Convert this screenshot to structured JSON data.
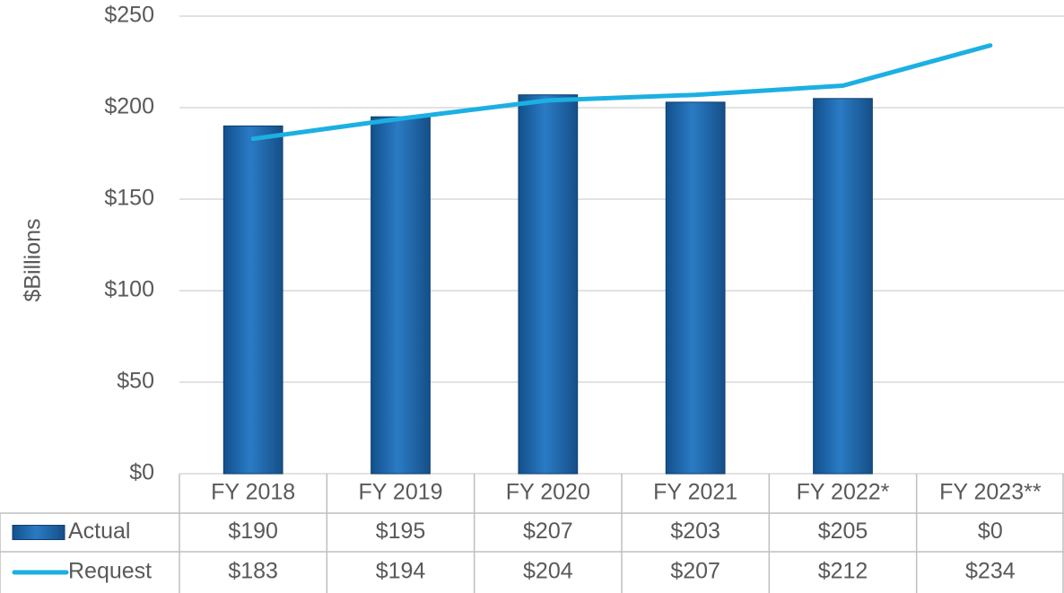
{
  "chart_data": {
    "type": "bar",
    "y_label": "$Billions",
    "categories": [
      "FY 2018",
      "FY 2019",
      "FY 2020",
      "FY 2021",
      "FY 2022*",
      "FY 2023**"
    ],
    "series": [
      {
        "name": "Actual",
        "type": "bar",
        "color": "#1f6db3",
        "values": [
          190,
          195,
          207,
          203,
          205,
          0
        ],
        "value_labels": [
          "$190",
          "$195",
          "$207",
          "$203",
          "$205",
          "$0"
        ]
      },
      {
        "name": "Request",
        "type": "line",
        "color": "#1cb0e2",
        "values": [
          183,
          194,
          204,
          207,
          212,
          234
        ],
        "value_labels": [
          "$183",
          "$194",
          "$204",
          "$207",
          "$212",
          "$234"
        ]
      }
    ],
    "ylim": [
      0,
      250
    ],
    "yticks": [
      {
        "value": 0,
        "label": "$0"
      },
      {
        "value": 50,
        "label": "$50"
      },
      {
        "value": 100,
        "label": "$100"
      },
      {
        "value": 150,
        "label": "$150"
      },
      {
        "value": 200,
        "label": "$200"
      },
      {
        "value": 250,
        "label": "$250"
      }
    ],
    "grid": true,
    "data_table": true
  }
}
